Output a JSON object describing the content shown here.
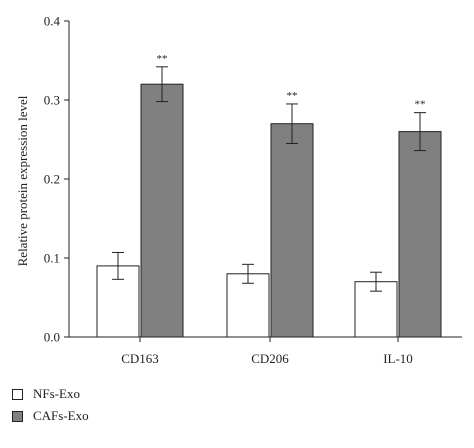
{
  "chart_data": {
    "type": "bar",
    "categories": [
      "CD163",
      "CD206",
      "IL-10"
    ],
    "series": [
      {
        "name": "NFs-Exo",
        "values": [
          0.09,
          0.08,
          0.07
        ],
        "errors": [
          0.017,
          0.012,
          0.012
        ],
        "color": "#ffffff"
      },
      {
        "name": "CAFs-Exo",
        "values": [
          0.32,
          0.27,
          0.26
        ],
        "errors": [
          0.022,
          0.025,
          0.024
        ],
        "color": "#808080"
      }
    ],
    "significance": [
      "**",
      "**",
      "**"
    ],
    "ylabel": "Relative protein expression level",
    "xlabel": "",
    "ylim": [
      0,
      0.4
    ],
    "yticks": [
      "0.0",
      "0.1",
      "0.2",
      "0.3",
      "0.4"
    ],
    "legend_position": "bottom-left",
    "grid": false
  }
}
